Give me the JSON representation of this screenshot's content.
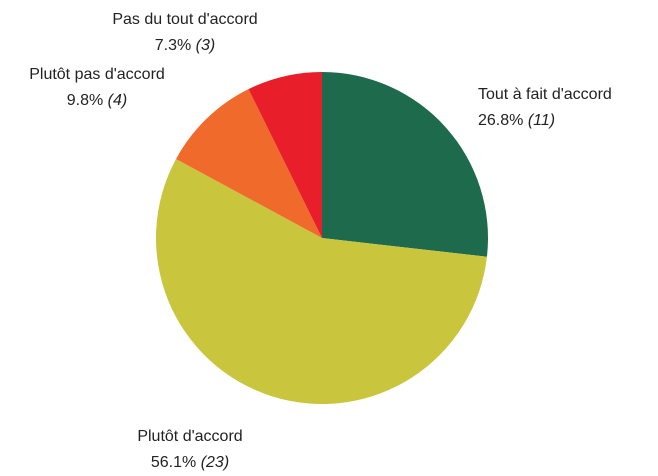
{
  "chart_data": {
    "type": "pie",
    "categories": [
      "Tout à fait d'accord",
      "Plutôt d'accord",
      "Plutôt pas d'accord",
      "Pas du tout d'accord"
    ],
    "values": [
      26.8,
      56.1,
      9.8,
      7.3
    ],
    "value_labels": [
      "26.8%",
      "56.1%",
      "9.8%",
      "7.3%"
    ],
    "counts": [
      11,
      23,
      4,
      3
    ],
    "colors": [
      "#1e6a4c",
      "#c9c53c",
      "#f06a2c",
      "#e81f2a"
    ]
  }
}
